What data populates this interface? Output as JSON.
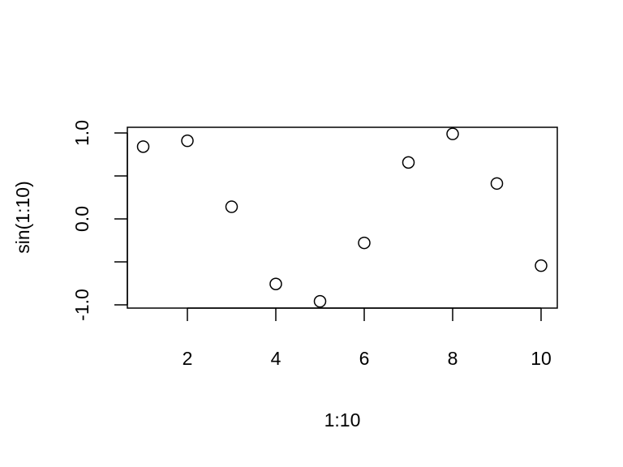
{
  "chart_data": {
    "type": "scatter",
    "title": "",
    "xlabel": "1:10",
    "ylabel": "sin(1:10)",
    "x": [
      1,
      2,
      3,
      4,
      5,
      6,
      7,
      8,
      9,
      10
    ],
    "y": [
      0.841,
      0.909,
      0.141,
      -0.757,
      -0.959,
      -0.279,
      0.657,
      0.989,
      0.412,
      -0.544
    ],
    "xlim": [
      0.64,
      10.36
    ],
    "ylim": [
      -1.07,
      1.07
    ],
    "xticks": [
      2,
      4,
      6,
      8,
      10
    ],
    "xtick_labels": [
      "2",
      "4",
      "6",
      "8",
      "10"
    ],
    "yticks": [
      -1,
      -0.5,
      0,
      0.5,
      1
    ],
    "ytick_labels": [
      "-1.0",
      "",
      "0.0",
      "",
      "1.0"
    ],
    "marker": "open-circle",
    "grid": false,
    "color": "#000000"
  }
}
